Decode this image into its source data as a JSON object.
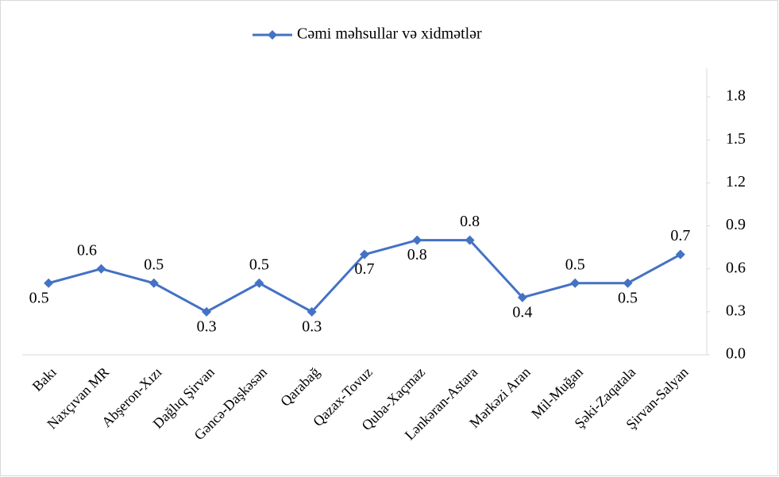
{
  "chart_data": {
    "type": "line",
    "categories": [
      "Bakı",
      "Naxçıvan MR",
      "Abşeron-Xızı",
      "Dağlıq Şirvan",
      "Gəncə-Daşkəsən",
      "Qarabağ",
      "Qazax-Tovuz",
      "Quba-Xaçmaz",
      "Lənkəran-Astara",
      "Mərkəzi  Aran",
      "Mil-Muğan",
      "Şəki-Zaqatala",
      "Şirvan-Salyan"
    ],
    "series": [
      {
        "name": "Cəmi məhsullar və xidmətlər",
        "color": "#4472c4",
        "values": [
          0.5,
          0.6,
          0.5,
          0.3,
          0.5,
          0.3,
          0.7,
          0.8,
          0.8,
          0.4,
          0.5,
          0.5,
          0.7
        ]
      }
    ],
    "ylim": [
      0,
      2
    ],
    "yticks": [
      {
        "value": 0,
        "label": "0.0"
      },
      0.3,
      0.6,
      0.9,
      1.2,
      1.5,
      1.8
    ],
    "y_axis_side": "right",
    "legend": "top",
    "grid": false
  }
}
